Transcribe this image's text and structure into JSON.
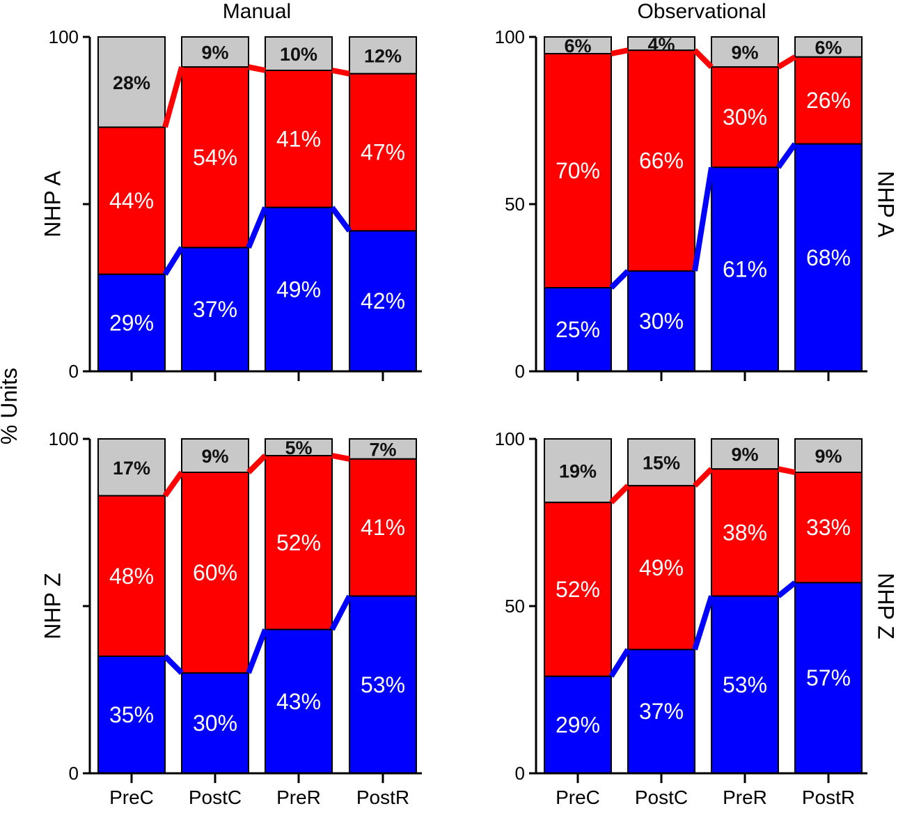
{
  "chart_data": [
    {
      "type": "bar",
      "stacked": true,
      "panel": "Manual / NHP A",
      "title": "Manual",
      "row_label": "NHP A",
      "categories": [
        "PreC",
        "PostC",
        "PreR",
        "PostR"
      ],
      "series": [
        {
          "name": "blue",
          "values": [
            29,
            37,
            49,
            42
          ],
          "labels": [
            "29%",
            "37%",
            "49%",
            "42%"
          ]
        },
        {
          "name": "red",
          "values": [
            44,
            54,
            41,
            47
          ],
          "labels": [
            "44%",
            "54%",
            "41%",
            "47%"
          ]
        },
        {
          "name": "gray",
          "values": [
            28,
            9,
            10,
            12
          ],
          "labels": [
            "28%",
            "9%",
            "10%",
            "12%"
          ]
        }
      ],
      "ylim": [
        0,
        100
      ],
      "yticks": [
        "0",
        "",
        "100"
      ]
    },
    {
      "type": "bar",
      "stacked": true,
      "panel": "Observational / NHP A",
      "title": "Observational",
      "row_label": "NHP A",
      "categories": [
        "PreC",
        "PostC",
        "PreR",
        "PostR"
      ],
      "series": [
        {
          "name": "blue",
          "values": [
            25,
            30,
            61,
            68
          ],
          "labels": [
            "25%",
            "30%",
            "61%",
            "68%"
          ]
        },
        {
          "name": "red",
          "values": [
            70,
            66,
            30,
            26
          ],
          "labels": [
            "70%",
            "66%",
            "30%",
            "26%"
          ]
        },
        {
          "name": "gray",
          "values": [
            6,
            4,
            9,
            6
          ],
          "labels": [
            "6%",
            "4%",
            "9%",
            "6%"
          ]
        }
      ],
      "ylim": [
        0,
        100
      ],
      "yticks": [
        "0",
        "50",
        "100"
      ]
    },
    {
      "type": "bar",
      "stacked": true,
      "panel": "Manual / NHP Z",
      "title": "",
      "row_label": "NHP Z",
      "categories": [
        "PreC",
        "PostC",
        "PreR",
        "PostR"
      ],
      "series": [
        {
          "name": "blue",
          "values": [
            35,
            30,
            43,
            53
          ],
          "labels": [
            "35%",
            "30%",
            "43%",
            "53%"
          ]
        },
        {
          "name": "red",
          "values": [
            48,
            60,
            52,
            41
          ],
          "labels": [
            "48%",
            "60%",
            "52%",
            "41%"
          ]
        },
        {
          "name": "gray",
          "values": [
            17,
            9,
            5,
            7
          ],
          "labels": [
            "17%",
            "9%",
            "5%",
            "7%"
          ]
        }
      ],
      "ylim": [
        0,
        100
      ],
      "yticks": [
        "0",
        "",
        "100"
      ]
    },
    {
      "type": "bar",
      "stacked": true,
      "panel": "Observational / NHP Z",
      "title": "",
      "row_label": "NHP Z",
      "categories": [
        "PreC",
        "PostC",
        "PreR",
        "PostR"
      ],
      "series": [
        {
          "name": "blue",
          "values": [
            29,
            37,
            53,
            57
          ],
          "labels": [
            "29%",
            "37%",
            "53%",
            "57%"
          ]
        },
        {
          "name": "red",
          "values": [
            52,
            49,
            38,
            33
          ],
          "labels": [
            "52%",
            "49%",
            "38%",
            "33%"
          ]
        },
        {
          "name": "gray",
          "values": [
            19,
            15,
            9,
            9
          ],
          "labels": [
            "19%",
            "15%",
            "9%",
            "9%"
          ]
        }
      ],
      "ylim": [
        0,
        100
      ],
      "yticks": [
        "0",
        "50",
        "100"
      ]
    }
  ],
  "ylabel": "% Units",
  "colors": {
    "blue": "#0000ff",
    "red": "#ff0000",
    "gray": "#c8c8c8"
  }
}
